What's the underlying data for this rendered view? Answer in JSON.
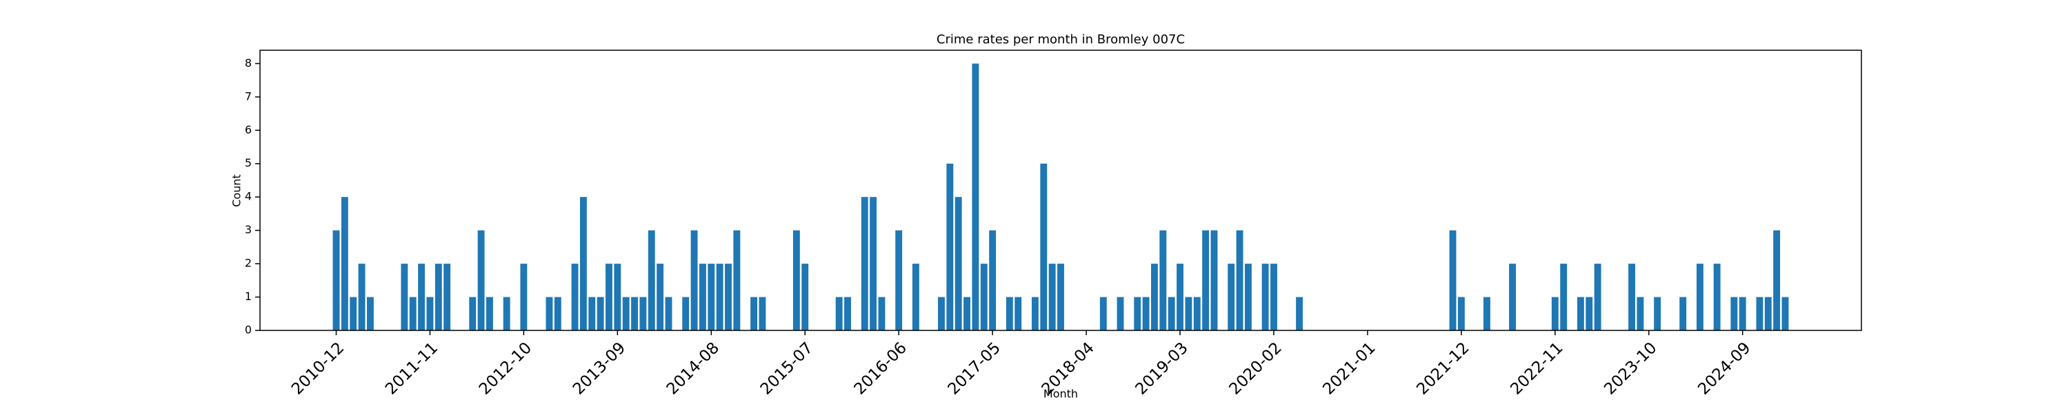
{
  "chart_data": {
    "type": "bar",
    "title": "Crime rates per month in Bromley 007C",
    "xlabel": "Month",
    "ylabel": "Count",
    "color": "#1f77b4",
    "x": [
      "2010-12",
      "2011-01",
      "2011-02",
      "2011-03",
      "2011-04",
      "2011-08",
      "2011-09",
      "2011-10",
      "2011-11",
      "2011-12",
      "2012-01",
      "2012-04",
      "2012-05",
      "2012-06",
      "2012-08",
      "2012-10",
      "2013-01",
      "2013-02",
      "2013-04",
      "2013-05",
      "2013-06",
      "2013-07",
      "2013-08",
      "2013-09",
      "2013-10",
      "2013-11",
      "2013-12",
      "2014-01",
      "2014-02",
      "2014-03",
      "2014-05",
      "2014-06",
      "2014-07",
      "2014-08",
      "2014-09",
      "2014-10",
      "2014-11",
      "2015-01",
      "2015-02",
      "2015-06",
      "2015-07",
      "2015-11",
      "2015-12",
      "2016-02",
      "2016-03",
      "2016-04",
      "2016-06",
      "2016-08",
      "2016-11",
      "2016-12",
      "2017-01",
      "2017-02",
      "2017-03",
      "2017-04",
      "2017-05",
      "2017-07",
      "2017-08",
      "2017-10",
      "2017-11",
      "2017-12",
      "2018-01",
      "2018-06",
      "2018-08",
      "2018-10",
      "2018-11",
      "2018-12",
      "2019-01",
      "2019-02",
      "2019-03",
      "2019-04",
      "2019-05",
      "2019-06",
      "2019-07",
      "2019-09",
      "2019-10",
      "2019-11",
      "2020-01",
      "2020-02",
      "2020-05",
      "2021-11",
      "2021-12",
      "2022-03",
      "2022-06",
      "2022-11",
      "2022-12",
      "2023-02",
      "2023-03",
      "2023-04",
      "2023-08",
      "2023-09",
      "2023-11",
      "2024-02",
      "2024-04",
      "2024-06",
      "2024-08",
      "2024-09",
      "2024-11",
      "2024-12",
      "2025-01",
      "2025-02"
    ],
    "values": [
      3,
      4,
      1,
      2,
      1,
      2,
      1,
      2,
      1,
      2,
      2,
      1,
      3,
      1,
      1,
      2,
      1,
      1,
      2,
      4,
      1,
      1,
      2,
      2,
      1,
      1,
      1,
      3,
      2,
      1,
      1,
      3,
      2,
      2,
      2,
      2,
      3,
      1,
      1,
      3,
      2,
      1,
      1,
      4,
      4,
      1,
      3,
      2,
      1,
      5,
      4,
      1,
      8,
      2,
      3,
      1,
      1,
      1,
      5,
      2,
      2,
      1,
      1,
      1,
      1,
      2,
      3,
      1,
      2,
      1,
      1,
      3,
      3,
      2,
      3,
      2,
      2,
      2,
      1,
      3,
      1,
      1,
      2,
      1,
      2,
      1,
      1,
      2,
      2,
      1,
      1,
      1,
      2,
      2,
      1,
      1,
      1,
      1,
      3,
      1
    ],
    "xticks": [
      "2010-12",
      "2011-11",
      "2012-10",
      "2013-09",
      "2014-08",
      "2015-07",
      "2016-06",
      "2017-05",
      "2018-04",
      "2019-03",
      "2020-02",
      "2021-01",
      "2021-12",
      "2022-11",
      "2023-10",
      "2024-09"
    ],
    "ylim": [
      0,
      8.4
    ],
    "yticks": [
      0,
      1,
      2,
      3,
      4,
      5,
      6,
      7,
      8
    ]
  }
}
